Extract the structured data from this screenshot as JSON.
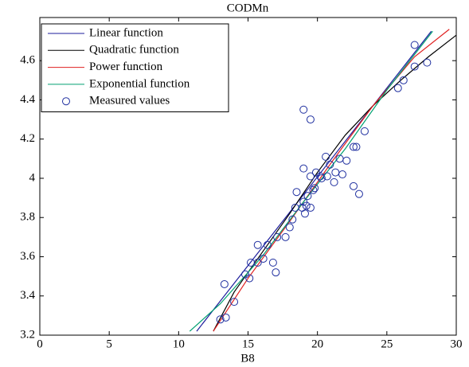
{
  "chart_data": {
    "type": "line",
    "title": "CODMn",
    "x_label": "B8",
    "xlim": [
      0,
      30
    ],
    "xticks": [
      0,
      5,
      10,
      15,
      20,
      25,
      30
    ],
    "ylim": [
      3.2,
      4.82
    ],
    "yticks": [
      3.2,
      3.4,
      3.6,
      3.8,
      4,
      4.2,
      4.4,
      4.6
    ],
    "legend": "upper left",
    "grid": false,
    "series": [
      {
        "name": "Linear function",
        "color": "#1c1c9c",
        "style": "line",
        "x": [
          11.3,
          28.2
        ],
        "values": [
          3.22,
          4.75
        ]
      },
      {
        "name": "Quadratic function",
        "color": "#000000",
        "style": "line",
        "x": [
          12.5,
          14,
          16,
          18,
          20,
          22,
          24,
          26,
          28,
          30
        ],
        "values": [
          3.22,
          3.42,
          3.62,
          3.82,
          4.03,
          4.22,
          4.37,
          4.5,
          4.62,
          4.73
        ]
      },
      {
        "name": "Power function",
        "color": "#e02020",
        "style": "line",
        "x": [
          12.5,
          15,
          18,
          21,
          24,
          27,
          29.5
        ],
        "values": [
          3.22,
          3.49,
          3.78,
          4.08,
          4.37,
          4.62,
          4.76
        ]
      },
      {
        "name": "Exponential function",
        "color": "#00a070",
        "style": "line",
        "x": [
          10.8,
          13,
          16,
          19,
          22,
          25,
          28.3
        ],
        "values": [
          3.22,
          3.36,
          3.6,
          3.88,
          4.15,
          4.45,
          4.75
        ]
      },
      {
        "name": "Measured values",
        "color": "#2030a0",
        "style": "markers",
        "x": [
          13,
          13.4,
          13.3,
          14,
          14.8,
          15.1,
          15.2,
          15.7,
          15.7,
          16.1,
          16.4,
          16.8,
          17,
          17.1,
          17.7,
          18,
          18.2,
          18.4,
          18.5,
          18.9,
          19,
          19,
          19.1,
          19.2,
          19.3,
          19.5,
          19.5,
          19.7,
          19.8,
          19.9,
          20.2,
          20.3,
          20.6,
          20.7,
          20.9,
          21.2,
          21.3,
          21.6,
          21.8,
          22.1,
          22.6,
          22.8,
          22.6,
          23,
          23.4,
          19,
          19.5,
          25.8,
          26.2,
          27,
          27,
          27.9
        ],
        "values": [
          3.28,
          3.29,
          3.46,
          3.37,
          3.51,
          3.49,
          3.57,
          3.57,
          3.66,
          3.59,
          3.66,
          3.57,
          3.52,
          3.7,
          3.7,
          3.75,
          3.79,
          3.85,
          3.93,
          3.85,
          3.88,
          4.05,
          3.82,
          3.86,
          3.91,
          3.85,
          4.01,
          3.94,
          3.95,
          4.03,
          4.01,
          4.0,
          4.11,
          4.01,
          4.07,
          3.98,
          4.03,
          4.1,
          4.02,
          4.09,
          4.16,
          4.16,
          3.96,
          3.92,
          4.24,
          4.35,
          4.3,
          4.46,
          4.5,
          4.57,
          4.68,
          4.59
        ]
      }
    ]
  }
}
